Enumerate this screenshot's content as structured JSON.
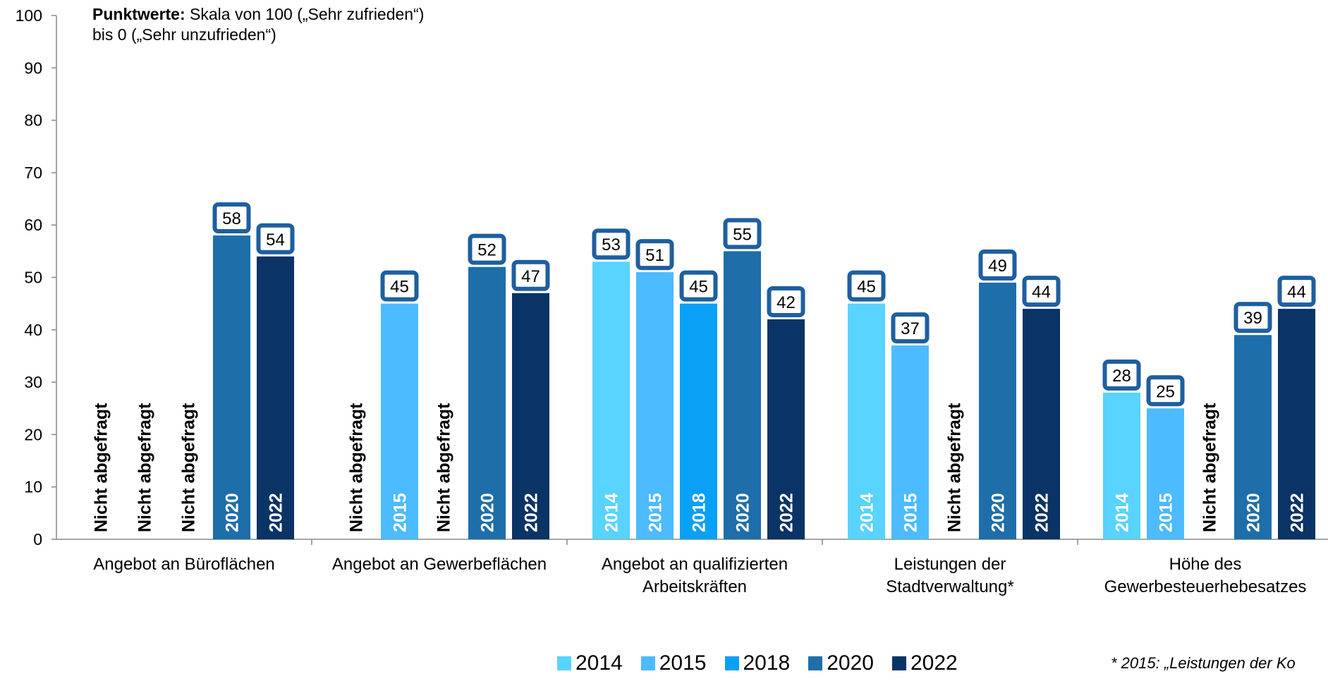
{
  "note": {
    "bold": "Punktwerte:",
    "text": " Skala von 100 („Sehr zufrieden“)",
    "line2": "bis 0 („Sehr unzufrieden“)"
  },
  "footnote": "* 2015: „Leistungen der Ko",
  "not_asked_label": "Nicht abgefragt",
  "chart_data": {
    "type": "bar",
    "ylim": [
      0,
      100
    ],
    "yticks": [
      0,
      10,
      20,
      30,
      40,
      50,
      60,
      70,
      80,
      90,
      100
    ],
    "legend_position": "bottom",
    "series": [
      {
        "name": "2014",
        "color": "#59D3FF"
      },
      {
        "name": "2015",
        "color": "#4CBBFF"
      },
      {
        "name": "2018",
        "color": "#0AA0F5"
      },
      {
        "name": "2020",
        "color": "#1E6EAA"
      },
      {
        "name": "2022",
        "color": "#0A3366"
      }
    ],
    "categories": [
      {
        "label": [
          "Angebot an Büroflächen"
        ],
        "values": [
          null,
          null,
          null,
          58,
          54
        ]
      },
      {
        "label": [
          "Angebot an Gewerbeflächen"
        ],
        "values": [
          null,
          45,
          null,
          52,
          47
        ]
      },
      {
        "label": [
          "Angebot an qualifizierten",
          "Arbeitskräften"
        ],
        "values": [
          53,
          51,
          45,
          55,
          42
        ]
      },
      {
        "label": [
          "Leistungen der",
          "Stadtverwaltung*"
        ],
        "values": [
          45,
          37,
          null,
          49,
          44
        ]
      },
      {
        "label": [
          "Höhe des",
          "Gewerbesteuerhebesatzes"
        ],
        "values": [
          28,
          25,
          null,
          39,
          44
        ]
      }
    ]
  }
}
